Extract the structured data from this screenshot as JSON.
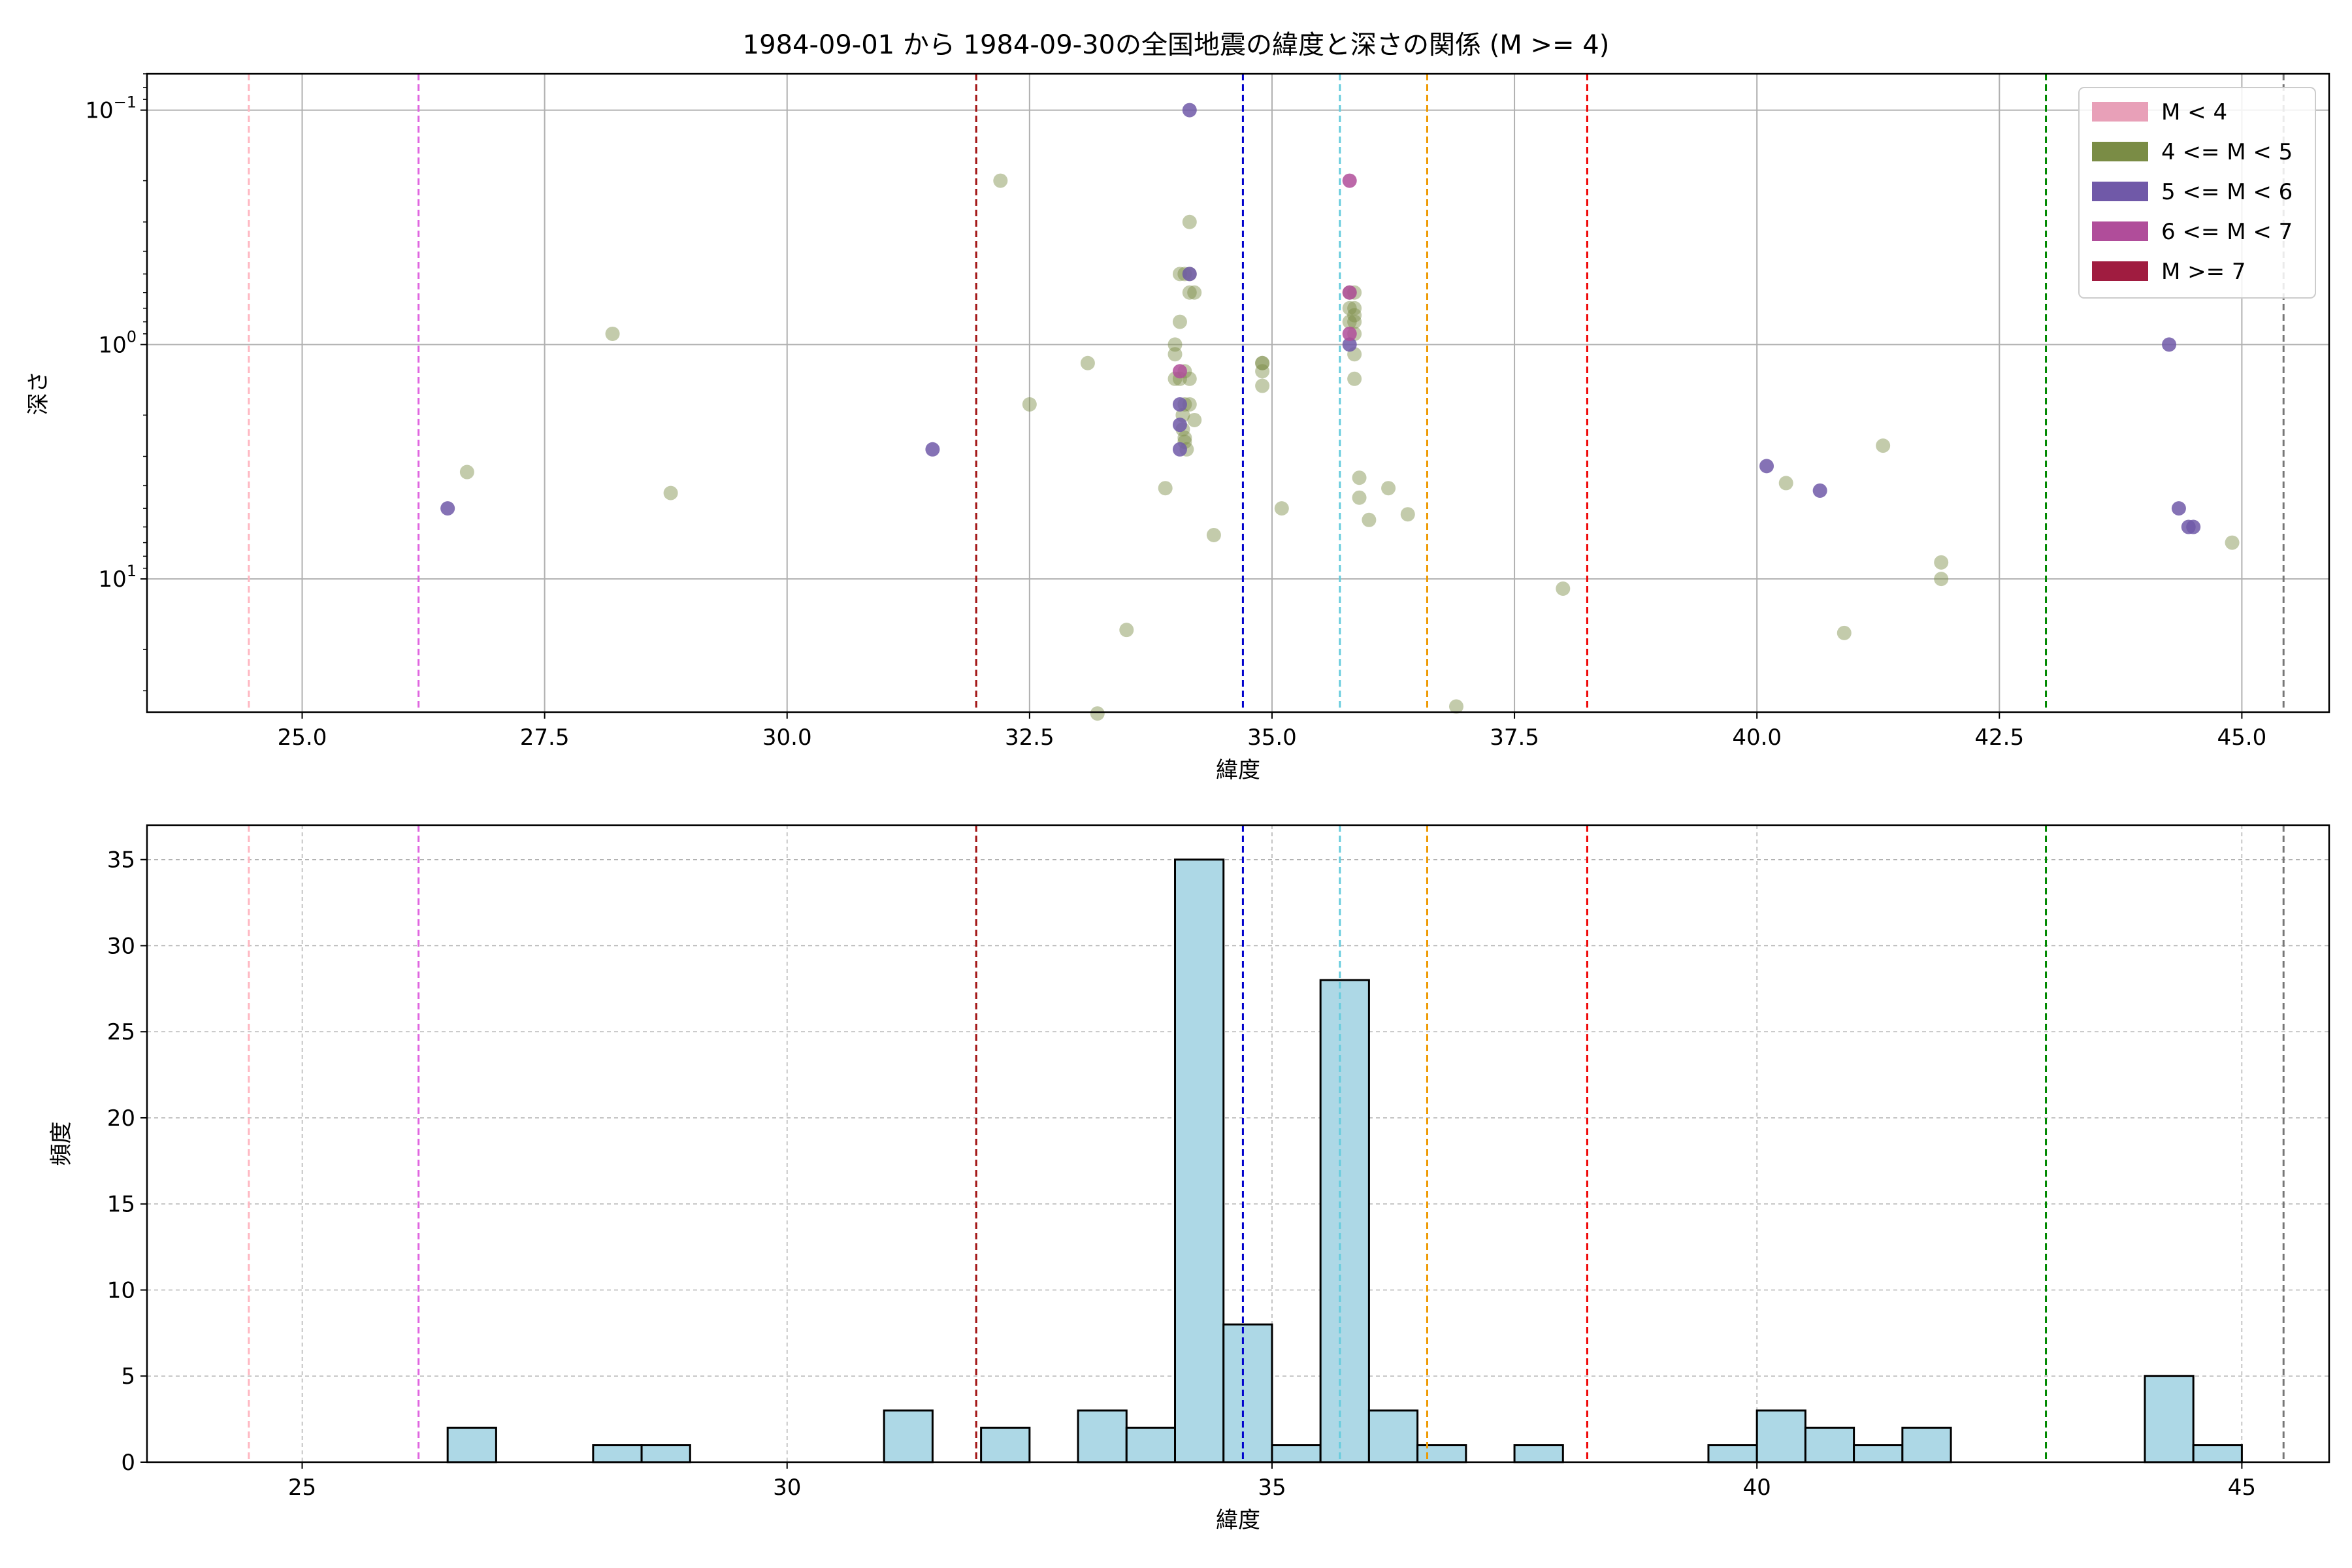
{
  "figure": {
    "title": "1984-09-01 から 1984-09-30の全国地震の緯度と深さの関係 (M >= 4)"
  },
  "chart_data": [
    {
      "type": "scatter",
      "xlabel": "緯度",
      "ylabel": "深さ",
      "xlim": [
        23.4,
        45.9
      ],
      "ylim": [
        37.0,
        0.07
      ],
      "yscale": "log",
      "y_inverted": true,
      "x_ticks": [
        "25.0",
        "27.5",
        "30.0",
        "32.5",
        "35.0",
        "37.5",
        "40.0",
        "42.5",
        "45.0"
      ],
      "y_ticks": [
        {
          "value": 0.1,
          "base": "10",
          "exp": "−1"
        },
        {
          "value": 1,
          "base": "10",
          "exp": "0"
        },
        {
          "value": 10,
          "base": "10",
          "exp": "1"
        }
      ],
      "grid": true,
      "legend_position": "top-right",
      "legend": [
        {
          "label": "M < 4",
          "color": "#e8a0b8"
        },
        {
          "label": "4 <= M < 5",
          "color": "#7a8c45"
        },
        {
          "label": "5 <= M < 6",
          "color": "#7059a8"
        },
        {
          "label": "6 <= M < 7",
          "color": "#b04d9a"
        },
        {
          "label": "M >= 7",
          "color": "#a01c40"
        }
      ],
      "series": [
        {
          "name": "4 <= M < 5",
          "color": "#7a8c45",
          "points": [
            [
              26.7,
              3.5
            ],
            [
              28.2,
              0.9
            ],
            [
              28.8,
              4.3
            ],
            [
              32.2,
              0.2
            ],
            [
              32.5,
              1.8
            ],
            [
              33.1,
              1.2
            ],
            [
              33.2,
              37.5
            ],
            [
              33.5,
              16.5
            ],
            [
              33.9,
              4.1
            ],
            [
              34.0,
              1.4
            ],
            [
              34.0,
              1.0
            ],
            [
              34.0,
              1.1
            ],
            [
              34.05,
              0.5
            ],
            [
              34.05,
              0.8
            ],
            [
              34.05,
              1.4
            ],
            [
              34.08,
              2.0
            ],
            [
              34.08,
              2.3
            ],
            [
              34.1,
              2.5
            ],
            [
              34.1,
              2.6
            ],
            [
              34.1,
              1.3
            ],
            [
              34.1,
              0.5
            ],
            [
              34.1,
              1.8
            ],
            [
              34.12,
              2.8
            ],
            [
              34.15,
              0.3
            ],
            [
              34.15,
              0.6
            ],
            [
              34.15,
              0.5
            ],
            [
              34.15,
              1.4
            ],
            [
              34.15,
              1.8
            ],
            [
              34.2,
              2.1
            ],
            [
              34.2,
              0.6
            ],
            [
              34.4,
              6.5
            ],
            [
              34.9,
              1.2
            ],
            [
              34.9,
              1.3
            ],
            [
              34.9,
              1.5
            ],
            [
              34.9,
              1.2
            ],
            [
              35.1,
              5.0
            ],
            [
              35.8,
              0.8
            ],
            [
              35.8,
              0.6
            ],
            [
              35.8,
              0.7
            ],
            [
              35.85,
              0.9
            ],
            [
              35.85,
              1.1
            ],
            [
              35.85,
              1.4
            ],
            [
              35.85,
              0.6
            ],
            [
              35.85,
              0.8
            ],
            [
              35.85,
              0.7
            ],
            [
              35.85,
              0.75
            ],
            [
              35.9,
              3.7
            ],
            [
              35.9,
              4.5
            ],
            [
              36.0,
              5.6
            ],
            [
              36.2,
              4.1
            ],
            [
              36.4,
              5.3
            ],
            [
              36.9,
              35.0
            ],
            [
              38.0,
              11.0
            ],
            [
              40.3,
              3.9
            ],
            [
              40.9,
              17.0
            ],
            [
              41.3,
              2.7
            ],
            [
              41.9,
              10.0
            ],
            [
              41.9,
              8.5
            ],
            [
              44.9,
              7.0
            ]
          ]
        },
        {
          "name": "5 <= M < 6",
          "color": "#7059a8",
          "points": [
            [
              26.5,
              5.0
            ],
            [
              31.5,
              2.8
            ],
            [
              34.05,
              2.8
            ],
            [
              34.05,
              1.8
            ],
            [
              34.05,
              2.2
            ],
            [
              34.15,
              0.1
            ],
            [
              34.15,
              0.5
            ],
            [
              35.8,
              1.0
            ],
            [
              40.1,
              3.3
            ],
            [
              40.65,
              4.2
            ],
            [
              44.25,
              1.0
            ],
            [
              44.35,
              5.0
            ],
            [
              44.45,
              6.0
            ],
            [
              44.5,
              6.0
            ]
          ]
        },
        {
          "name": "6 <= M < 7",
          "color": "#b04d9a",
          "points": [
            [
              34.05,
              1.3
            ],
            [
              35.8,
              0.2
            ],
            [
              35.8,
              0.6
            ],
            [
              35.8,
              0.9
            ]
          ]
        }
      ],
      "vlines": [
        {
          "x": 24.45,
          "color": "#ffb6c1"
        },
        {
          "x": 26.2,
          "color": "#e066e0"
        },
        {
          "x": 31.95,
          "color": "#a01010"
        },
        {
          "x": 34.7,
          "color": "#0000cc"
        },
        {
          "x": 35.7,
          "color": "#66ccdd"
        },
        {
          "x": 36.6,
          "color": "#ee9900"
        },
        {
          "x": 38.25,
          "color": "#ee0000"
        },
        {
          "x": 42.98,
          "color": "#008800"
        },
        {
          "x": 45.43,
          "color": "#777777"
        }
      ]
    },
    {
      "type": "bar",
      "xlabel": "緯度",
      "ylabel": "頻度",
      "xlim": [
        23.4,
        45.9
      ],
      "ylim": [
        0,
        37
      ],
      "x_ticks": [
        "25",
        "30",
        "35",
        "40",
        "45"
      ],
      "y_ticks": [
        "0",
        "5",
        "10",
        "15",
        "20",
        "25",
        "30",
        "35"
      ],
      "grid": true,
      "bar_color": "#add8e6",
      "bins": [
        {
          "start": 26.5,
          "end": 27.0,
          "count": 2
        },
        {
          "start": 28.0,
          "end": 28.5,
          "count": 1
        },
        {
          "start": 28.5,
          "end": 29.0,
          "count": 1
        },
        {
          "start": 31.0,
          "end": 31.5,
          "count": 3
        },
        {
          "start": 32.0,
          "end": 32.5,
          "count": 2
        },
        {
          "start": 33.0,
          "end": 33.5,
          "count": 3
        },
        {
          "start": 33.5,
          "end": 34.0,
          "count": 2
        },
        {
          "start": 34.0,
          "end": 34.5,
          "count": 35
        },
        {
          "start": 34.5,
          "end": 35.0,
          "count": 8
        },
        {
          "start": 35.0,
          "end": 35.5,
          "count": 1
        },
        {
          "start": 35.5,
          "end": 36.0,
          "count": 28
        },
        {
          "start": 36.0,
          "end": 36.5,
          "count": 3
        },
        {
          "start": 36.5,
          "end": 37.0,
          "count": 1
        },
        {
          "start": 37.5,
          "end": 38.0,
          "count": 1
        },
        {
          "start": 39.5,
          "end": 40.0,
          "count": 1
        },
        {
          "start": 40.0,
          "end": 40.5,
          "count": 3
        },
        {
          "start": 40.5,
          "end": 41.0,
          "count": 2
        },
        {
          "start": 41.0,
          "end": 41.5,
          "count": 1
        },
        {
          "start": 41.5,
          "end": 42.0,
          "count": 2
        },
        {
          "start": 44.0,
          "end": 44.5,
          "count": 5
        },
        {
          "start": 44.5,
          "end": 45.0,
          "count": 1
        }
      ],
      "vlines": [
        {
          "x": 24.45,
          "color": "#ffb6c1"
        },
        {
          "x": 26.2,
          "color": "#e066e0"
        },
        {
          "x": 31.95,
          "color": "#a01010"
        },
        {
          "x": 34.7,
          "color": "#0000cc"
        },
        {
          "x": 35.7,
          "color": "#66ccdd"
        },
        {
          "x": 36.6,
          "color": "#ee9900"
        },
        {
          "x": 38.25,
          "color": "#ee0000"
        },
        {
          "x": 42.98,
          "color": "#008800"
        },
        {
          "x": 45.43,
          "color": "#777777"
        }
      ]
    }
  ]
}
